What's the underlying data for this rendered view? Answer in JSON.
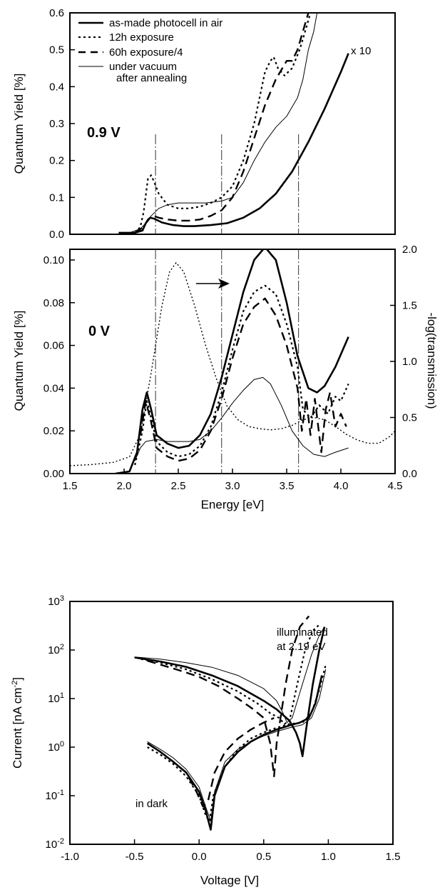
{
  "chart_data": [
    {
      "type": "line",
      "panel_label": "0.9  V",
      "ylabel": "Quantum Yield [%]",
      "xlim": [
        1.5,
        4.5
      ],
      "ylim": [
        0.0,
        0.6
      ],
      "yticks": [
        "0.0",
        "0.1",
        "0.2",
        "0.3",
        "0.4",
        "0.5",
        "0.6"
      ],
      "annotation": "x 10",
      "legend": [
        "as-made photocell in air",
        "12h exposure",
        "60h exposure/4",
        "under vacuum",
        "after annealing"
      ],
      "reference_lines_x": [
        2.29,
        2.9,
        3.61
      ],
      "series": [
        {
          "name": "as-made photocell in air",
          "style": "thick-solid",
          "x": [
            1.95,
            2.1,
            2.17,
            2.2,
            2.24,
            2.28,
            2.35,
            2.45,
            2.55,
            2.65,
            2.8,
            2.95,
            3.1,
            3.25,
            3.4,
            3.55,
            3.7,
            3.85,
            4.0,
            4.07
          ],
          "y": [
            0.004,
            0.004,
            0.01,
            0.03,
            0.045,
            0.042,
            0.032,
            0.025,
            0.022,
            0.022,
            0.025,
            0.03,
            0.045,
            0.07,
            0.11,
            0.17,
            0.25,
            0.34,
            0.44,
            0.49
          ]
        },
        {
          "name": "12h exposure",
          "style": "dotted",
          "x": [
            2.1,
            2.15,
            2.18,
            2.22,
            2.25,
            2.28,
            2.32,
            2.4,
            2.5,
            2.6,
            2.7,
            2.8,
            2.9,
            3.0,
            3.1,
            3.2,
            3.3,
            3.35,
            3.38,
            3.42,
            3.48,
            3.55,
            3.62,
            3.68,
            3.72
          ],
          "y": [
            0.004,
            0.02,
            0.06,
            0.15,
            0.16,
            0.14,
            0.11,
            0.08,
            0.07,
            0.07,
            0.075,
            0.085,
            0.1,
            0.13,
            0.2,
            0.3,
            0.44,
            0.47,
            0.48,
            0.45,
            0.43,
            0.45,
            0.5,
            0.56,
            0.6
          ]
        },
        {
          "name": "60h exposure/4",
          "style": "dashed",
          "x": [
            2.1,
            2.18,
            2.22,
            2.27,
            2.32,
            2.4,
            2.5,
            2.6,
            2.7,
            2.8,
            2.9,
            3.0,
            3.1,
            3.2,
            3.3,
            3.4,
            3.5,
            3.55,
            3.6,
            3.65,
            3.7
          ],
          "y": [
            0.004,
            0.02,
            0.04,
            0.05,
            0.045,
            0.04,
            0.037,
            0.037,
            0.04,
            0.05,
            0.065,
            0.1,
            0.17,
            0.26,
            0.35,
            0.42,
            0.47,
            0.47,
            0.5,
            0.55,
            0.6
          ]
        },
        {
          "name": "under vacuum after annealing",
          "style": "thin-solid",
          "x": [
            2.05,
            2.15,
            2.2,
            2.25,
            2.32,
            2.4,
            2.5,
            2.6,
            2.75,
            2.9,
            3.0,
            3.1,
            3.2,
            3.3,
            3.4,
            3.5,
            3.6,
            3.65,
            3.7,
            3.75,
            3.78
          ],
          "y": [
            0.004,
            0.015,
            0.03,
            0.05,
            0.07,
            0.08,
            0.085,
            0.085,
            0.085,
            0.09,
            0.1,
            0.14,
            0.2,
            0.25,
            0.29,
            0.32,
            0.37,
            0.42,
            0.5,
            0.55,
            0.6
          ]
        }
      ]
    },
    {
      "type": "line",
      "panel_label": "0  V",
      "xlabel": "Energy [eV]",
      "ylabel": "Quantum Yield [%]",
      "ylabel_right": "-log(transmission)",
      "xlim": [
        1.5,
        4.5
      ],
      "ylim": [
        0.0,
        0.105
      ],
      "ylim_right": [
        0.0,
        2.0
      ],
      "xticks": [
        "1.5",
        "2.0",
        "2.5",
        "3.0",
        "3.5",
        "4.0",
        "4.5"
      ],
      "yticks": [
        "0.00",
        "0.02",
        "0.04",
        "0.06",
        "0.08",
        "0.10"
      ],
      "yticks_right": [
        "0.0",
        "0.5",
        "1.0",
        "1.5",
        "2.0"
      ],
      "reference_lines_x": [
        2.29,
        2.9,
        3.61
      ],
      "series": [
        {
          "name": "as-made photocell in air",
          "style": "thick-solid",
          "x": [
            1.92,
            2.05,
            2.12,
            2.17,
            2.21,
            2.25,
            2.3,
            2.4,
            2.5,
            2.6,
            2.7,
            2.8,
            2.9,
            3.0,
            3.1,
            3.2,
            3.3,
            3.4,
            3.5,
            3.6,
            3.7,
            3.78,
            3.85,
            3.95,
            4.07
          ],
          "y": [
            0.0,
            0.001,
            0.01,
            0.03,
            0.038,
            0.03,
            0.018,
            0.014,
            0.012,
            0.013,
            0.018,
            0.028,
            0.045,
            0.065,
            0.085,
            0.1,
            0.106,
            0.1,
            0.08,
            0.055,
            0.04,
            0.038,
            0.041,
            0.05,
            0.064
          ]
        },
        {
          "name": "12h exposure",
          "style": "dotted",
          "x": [
            2.1,
            2.17,
            2.21,
            2.25,
            2.3,
            2.4,
            2.5,
            2.6,
            2.7,
            2.8,
            2.9,
            3.0,
            3.1,
            3.2,
            3.3,
            3.4,
            3.5,
            3.6,
            3.65,
            3.72,
            3.8,
            3.88,
            3.95,
            4.0,
            4.07
          ],
          "y": [
            0.004,
            0.02,
            0.034,
            0.026,
            0.015,
            0.01,
            0.008,
            0.009,
            0.013,
            0.022,
            0.038,
            0.058,
            0.076,
            0.085,
            0.088,
            0.084,
            0.07,
            0.05,
            0.03,
            0.026,
            0.032,
            0.028,
            0.036,
            0.034,
            0.042
          ]
        },
        {
          "name": "60h exposure/4",
          "style": "dashed",
          "x": [
            2.15,
            2.2,
            2.25,
            2.3,
            2.4,
            2.5,
            2.6,
            2.7,
            2.8,
            2.9,
            3.0,
            3.1,
            3.2,
            3.3,
            3.4,
            3.5,
            3.6,
            3.64,
            3.68,
            3.72,
            3.76,
            3.82,
            3.86,
            3.9,
            3.95,
            4.0,
            4.05
          ],
          "y": [
            0.018,
            0.034,
            0.024,
            0.012,
            0.008,
            0.006,
            0.007,
            0.011,
            0.02,
            0.035,
            0.054,
            0.07,
            0.078,
            0.082,
            0.074,
            0.06,
            0.04,
            0.02,
            0.035,
            0.018,
            0.035,
            0.01,
            0.03,
            0.038,
            0.022,
            0.028,
            0.022
          ]
        },
        {
          "name": "under vacuum after annealing",
          "style": "thin-solid",
          "x": [
            2.1,
            2.15,
            2.2,
            2.3,
            2.4,
            2.5,
            2.6,
            2.7,
            2.8,
            2.9,
            3.0,
            3.1,
            3.2,
            3.28,
            3.35,
            3.45,
            3.55,
            3.65,
            3.75,
            3.85,
            3.95,
            4.07
          ],
          "y": [
            0.006,
            0.012,
            0.015,
            0.016,
            0.015,
            0.015,
            0.015,
            0.016,
            0.02,
            0.026,
            0.033,
            0.039,
            0.044,
            0.045,
            0.042,
            0.032,
            0.02,
            0.013,
            0.009,
            0.008,
            0.01,
            0.012
          ]
        },
        {
          "name": "-log(transmission)",
          "style": "fine-dotted",
          "axis": "right",
          "x": [
            1.5,
            1.7,
            1.9,
            2.05,
            2.15,
            2.25,
            2.35,
            2.42,
            2.48,
            2.55,
            2.65,
            2.75,
            2.85,
            2.95,
            3.05,
            3.15,
            3.25,
            3.35,
            3.45,
            3.55,
            3.65,
            3.75,
            3.85,
            3.95,
            4.05,
            4.15,
            4.25,
            4.35,
            4.45,
            4.5
          ],
          "y": [
            0.07,
            0.08,
            0.1,
            0.15,
            0.35,
            0.9,
            1.5,
            1.8,
            1.88,
            1.8,
            1.5,
            1.15,
            0.85,
            0.6,
            0.48,
            0.42,
            0.4,
            0.39,
            0.4,
            0.43,
            0.48,
            0.5,
            0.48,
            0.42,
            0.35,
            0.3,
            0.27,
            0.27,
            0.33,
            0.38
          ]
        }
      ]
    },
    {
      "type": "line",
      "xlabel": "Voltage [V]",
      "ylabel": "Current [nA cm-2]",
      "yscale": "log",
      "xlim": [
        -1.0,
        1.5
      ],
      "ylim": [
        0.01,
        1000
      ],
      "xticks": [
        "-1.0",
        "-0.5",
        "0.0",
        "0.5",
        "1.0",
        "1.5"
      ],
      "yticks": [
        "10-2",
        "10-1",
        "100",
        "101",
        "102",
        "103"
      ],
      "annotations": [
        "illuminated",
        "at 2.19 eV",
        "in dark"
      ],
      "series": [
        {
          "name": "illuminated as-made",
          "style": "thick-solid",
          "x": [
            -0.5,
            -0.3,
            -0.1,
            0.1,
            0.3,
            0.5,
            0.6,
            0.7,
            0.75,
            0.78,
            0.8,
            0.83,
            0.88,
            0.93,
            0.97
          ],
          "y": [
            70,
            58,
            45,
            30,
            18,
            9,
            6,
            3.5,
            2,
            1.2,
            0.65,
            2.5,
            20,
            100,
            300
          ]
        },
        {
          "name": "illuminated 12h",
          "style": "dotted",
          "x": [
            -0.45,
            -0.3,
            -0.1,
            0.1,
            0.3,
            0.45,
            0.55,
            0.62,
            0.66,
            0.7,
            0.76,
            0.82,
            0.88,
            0.94
          ],
          "y": [
            65,
            55,
            40,
            25,
            14,
            8,
            5,
            4,
            3,
            3.5,
            20,
            100,
            250,
            350
          ]
        },
        {
          "name": "illuminated 60h",
          "style": "dashed",
          "x": [
            -0.4,
            -0.3,
            -0.15,
            0.0,
            0.15,
            0.3,
            0.42,
            0.5,
            0.55,
            0.58,
            0.6,
            0.63,
            0.67,
            0.72,
            0.78,
            0.85
          ],
          "y": [
            60,
            50,
            38,
            28,
            18,
            10,
            6,
            4,
            1.2,
            0.25,
            1.2,
            4,
            20,
            100,
            300,
            500
          ]
        },
        {
          "name": "illuminated vacuum",
          "style": "thin-solid",
          "x": [
            -0.5,
            -0.3,
            -0.1,
            0.1,
            0.3,
            0.5,
            0.6,
            0.65,
            0.68,
            0.72,
            0.8,
            0.87,
            0.93,
            0.97
          ],
          "y": [
            72,
            65,
            55,
            44,
            30,
            16,
            9,
            5,
            3.2,
            4,
            20,
            80,
            200,
            300
          ]
        },
        {
          "name": "dark as-made",
          "style": "thick-solid",
          "x": [
            -0.4,
            -0.3,
            -0.2,
            -0.1,
            0.0,
            0.05,
            0.09,
            0.12,
            0.2,
            0.3,
            0.4,
            0.5,
            0.6,
            0.7,
            0.78,
            0.85,
            0.9,
            0.95
          ],
          "y": [
            1.2,
            0.8,
            0.5,
            0.3,
            0.12,
            0.05,
            0.02,
            0.1,
            0.4,
            0.8,
            1.3,
            1.8,
            2.3,
            2.8,
            3.2,
            4,
            8,
            30
          ]
        },
        {
          "name": "dark 12h",
          "style": "dotted",
          "x": [
            -0.4,
            -0.3,
            -0.2,
            -0.1,
            0.0,
            0.05,
            0.08,
            0.11,
            0.2,
            0.3,
            0.4,
            0.5,
            0.6,
            0.7,
            0.8,
            0.87,
            0.93,
            0.98
          ],
          "y": [
            1.0,
            0.7,
            0.45,
            0.25,
            0.1,
            0.04,
            0.03,
            0.1,
            0.4,
            0.9,
            1.5,
            2.0,
            2.5,
            3.0,
            3.2,
            5,
            15,
            50
          ]
        },
        {
          "name": "dark 60h",
          "style": "dashed",
          "x": [
            -0.4,
            -0.3,
            -0.2,
            -0.1,
            -0.02,
            0.03,
            0.07,
            0.12,
            0.2,
            0.3,
            0.4,
            0.5,
            0.58
          ],
          "y": [
            1.2,
            0.8,
            0.5,
            0.3,
            0.12,
            0.06,
            0.08,
            0.3,
            0.8,
            1.5,
            2.3,
            3.2,
            4
          ]
        },
        {
          "name": "dark vacuum",
          "style": "thin-solid",
          "x": [
            -0.4,
            -0.3,
            -0.2,
            -0.1,
            0.0,
            0.05,
            0.09,
            0.12,
            0.2,
            0.3,
            0.4,
            0.5,
            0.6,
            0.7,
            0.8,
            0.87,
            0.93,
            0.98
          ],
          "y": [
            1.3,
            0.9,
            0.6,
            0.35,
            0.15,
            0.06,
            0.03,
            0.12,
            0.5,
            0.9,
            1.3,
            1.7,
            2.1,
            2.5,
            2.9,
            4,
            10,
            40
          ]
        }
      ]
    }
  ]
}
